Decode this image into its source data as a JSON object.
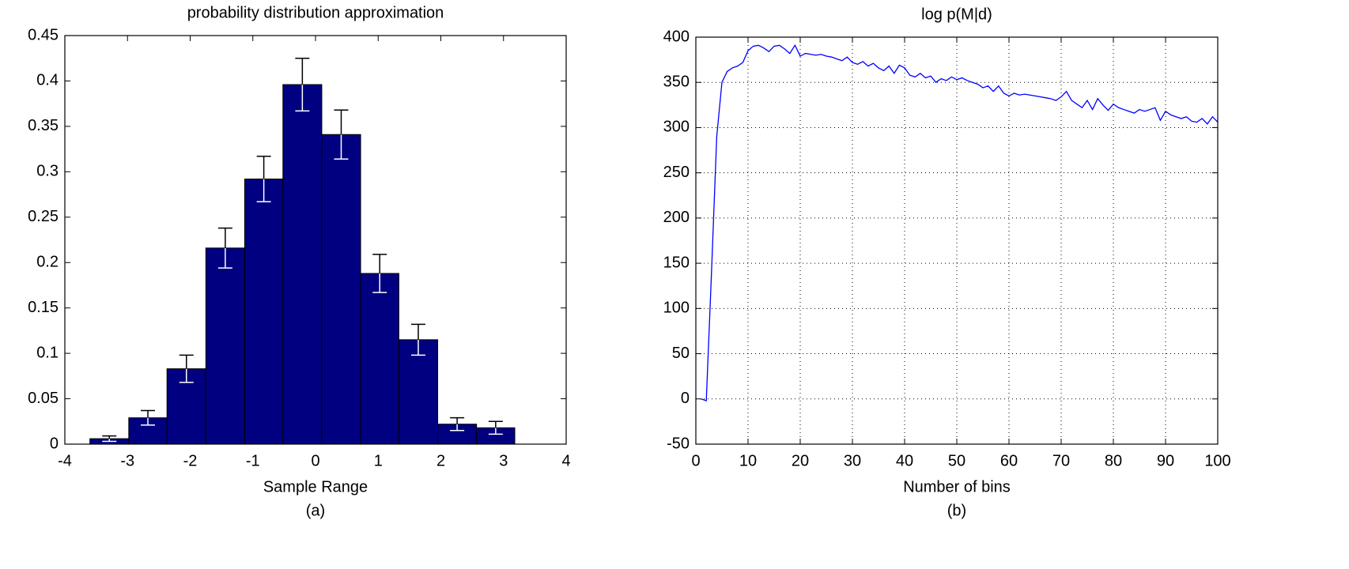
{
  "chart_data": [
    {
      "type": "histogram",
      "title": "probability distribution approximation",
      "xlabel": "Sample Range",
      "caption": "(a)",
      "bins": [
        -3.6,
        -2.98,
        -2.37,
        -1.75,
        -1.13,
        -0.52,
        0.1,
        0.72,
        1.33,
        1.95,
        2.57,
        3.18
      ],
      "values": [
        0.006,
        0.029,
        0.083,
        0.216,
        0.292,
        0.396,
        0.341,
        0.188,
        0.115,
        0.022,
        0.018
      ],
      "errors": [
        0.003,
        0.008,
        0.015,
        0.022,
        0.025,
        0.029,
        0.027,
        0.021,
        0.017,
        0.007,
        0.007
      ],
      "color": "#000080",
      "xlim": [
        -4,
        4
      ],
      "ylim": [
        0,
        0.45
      ],
      "xticks": [
        -4,
        -3,
        -2,
        -1,
        0,
        1,
        2,
        3,
        4
      ],
      "yticks": [
        0,
        0.05,
        0.1,
        0.15,
        0.2,
        0.25,
        0.3,
        0.35,
        0.4,
        0.45
      ],
      "grid": false
    },
    {
      "type": "line",
      "title": "log p(M|d)",
      "xlabel": "Number of bins",
      "caption": "(b)",
      "x": [
        1,
        2,
        3,
        4,
        5,
        6,
        7,
        8,
        9,
        10,
        11,
        12,
        13,
        14,
        15,
        16,
        17,
        18,
        19,
        20,
        21,
        22,
        23,
        24,
        25,
        26,
        27,
        28,
        29,
        30,
        31,
        32,
        33,
        34,
        35,
        36,
        37,
        38,
        39,
        40,
        41,
        42,
        43,
        44,
        45,
        46,
        47,
        48,
        49,
        50,
        51,
        52,
        53,
        54,
        55,
        56,
        57,
        58,
        59,
        60,
        61,
        62,
        63,
        64,
        65,
        66,
        67,
        68,
        69,
        70,
        71,
        72,
        73,
        74,
        75,
        76,
        77,
        78,
        79,
        80,
        81,
        82,
        83,
        84,
        85,
        86,
        87,
        88,
        89,
        90,
        91,
        92,
        93,
        94,
        95,
        96,
        97,
        98,
        99,
        100
      ],
      "values": [
        0,
        -2,
        140,
        290,
        350,
        362,
        366,
        368,
        372,
        385,
        390,
        391,
        388,
        384,
        390,
        391,
        387,
        382,
        391,
        379,
        382,
        381,
        380,
        381,
        379,
        378,
        376,
        374,
        378,
        372,
        370,
        373,
        368,
        371,
        366,
        363,
        368,
        360,
        369,
        366,
        358,
        356,
        360,
        355,
        357,
        350,
        354,
        352,
        356,
        353,
        355,
        352,
        350,
        348,
        344,
        346,
        340,
        346,
        338,
        335,
        338,
        336,
        337,
        336,
        335,
        334,
        333,
        332,
        330,
        334,
        340,
        330,
        326,
        322,
        330,
        320,
        332,
        325,
        319,
        326,
        322,
        320,
        318,
        316,
        320,
        318,
        320,
        322,
        308,
        318,
        314,
        312,
        310,
        312,
        307,
        306,
        310,
        304,
        312,
        306
      ],
      "color": "#0000ff",
      "xlim": [
        0,
        100
      ],
      "ylim": [
        -50,
        400
      ],
      "xticks": [
        0,
        10,
        20,
        30,
        40,
        50,
        60,
        70,
        80,
        90,
        100
      ],
      "yticks": [
        -50,
        0,
        50,
        100,
        150,
        200,
        250,
        300,
        350,
        400
      ],
      "grid": true
    }
  ]
}
